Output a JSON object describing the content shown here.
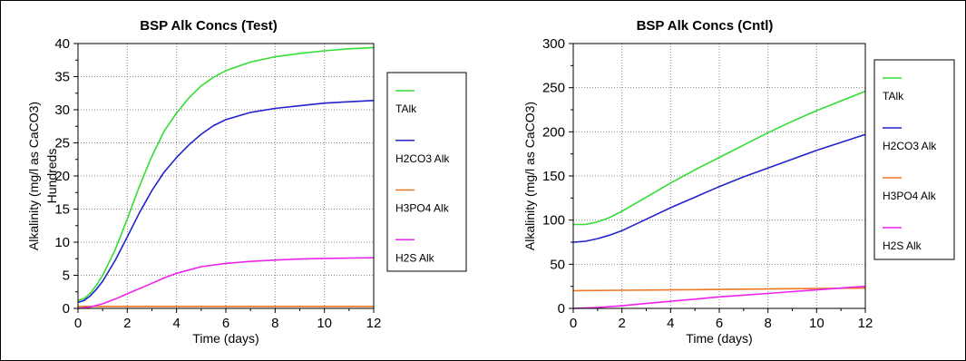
{
  "chart_data": [
    {
      "type": "line",
      "title": "BSP Alk Concs (Test)",
      "xlabel": "Time (days)",
      "ylabel": "Alkalinity (mg/l as CaCO3)",
      "yunit_label": "Hundreds",
      "xlim": [
        0,
        12
      ],
      "ylim": [
        0,
        40
      ],
      "xticks": [
        0,
        2,
        4,
        6,
        8,
        10,
        12
      ],
      "yticks": [
        0,
        5,
        10,
        15,
        20,
        25,
        30,
        35,
        40
      ],
      "grid": true,
      "legend_position": "right",
      "series": [
        {
          "name": "TAlk",
          "color": "#33dd33",
          "x": [
            0,
            0.25,
            0.5,
            0.75,
            1,
            1.5,
            2,
            2.5,
            3,
            3.5,
            4,
            4.5,
            5,
            5.5,
            6,
            7,
            8,
            9,
            10,
            11,
            12
          ],
          "y": [
            1.2,
            1.5,
            2.3,
            3.5,
            5.0,
            8.8,
            13.5,
            18.5,
            23.0,
            26.8,
            29.5,
            31.8,
            33.6,
            34.9,
            35.9,
            37.2,
            38.0,
            38.5,
            38.9,
            39.2,
            39.4
          ]
        },
        {
          "name": "H2CO3 Alk",
          "color": "#2222cc",
          "x": [
            0,
            0.25,
            0.5,
            0.75,
            1,
            1.5,
            2,
            2.5,
            3,
            3.5,
            4,
            4.5,
            5,
            5.5,
            6,
            7,
            8,
            9,
            10,
            11,
            12
          ],
          "y": [
            0.9,
            1.2,
            1.9,
            2.9,
            4.1,
            7.2,
            10.8,
            14.5,
            17.8,
            20.6,
            22.8,
            24.7,
            26.3,
            27.6,
            28.5,
            29.6,
            30.2,
            30.6,
            31.0,
            31.2,
            31.4
          ]
        },
        {
          "name": "H3PO4 Alk",
          "color": "#ee7722",
          "x": [
            0,
            2,
            4,
            6,
            8,
            10,
            12
          ],
          "y": [
            0.3,
            0.3,
            0.3,
            0.3,
            0.3,
            0.3,
            0.3
          ]
        },
        {
          "name": "H2S Alk",
          "color": "#ee22ee",
          "x": [
            0,
            0.5,
            1,
            1.5,
            2,
            2.5,
            3,
            3.5,
            4,
            4.5,
            5,
            6,
            7,
            8,
            9,
            10,
            11,
            12
          ],
          "y": [
            0.0,
            0.2,
            0.7,
            1.4,
            2.2,
            3.0,
            3.8,
            4.6,
            5.3,
            5.8,
            6.3,
            6.8,
            7.1,
            7.3,
            7.45,
            7.55,
            7.6,
            7.65
          ]
        }
      ]
    },
    {
      "type": "line",
      "title": "BSP Alk Concs (Cntl)",
      "xlabel": "Time (days)",
      "ylabel": "Alkalinity (mg/l as CaCO3)",
      "xlim": [
        0,
        12
      ],
      "ylim": [
        0,
        300
      ],
      "xticks": [
        0,
        2,
        4,
        6,
        8,
        10,
        12
      ],
      "yticks": [
        0,
        50,
        100,
        150,
        200,
        250,
        300
      ],
      "grid": true,
      "legend_position": "right",
      "series": [
        {
          "name": "TAlk",
          "color": "#33dd33",
          "x": [
            0,
            0.5,
            1,
            1.5,
            2,
            3,
            4,
            5,
            6,
            7,
            8,
            9,
            10,
            11,
            12
          ],
          "y": [
            95,
            95,
            98,
            103,
            110,
            126,
            142,
            157,
            171,
            185,
            199,
            212,
            224,
            235,
            246
          ]
        },
        {
          "name": "H2CO3 Alk",
          "color": "#2222cc",
          "x": [
            0,
            0.5,
            1,
            1.5,
            2,
            3,
            4,
            5,
            6,
            7,
            8,
            9,
            10,
            11,
            12
          ],
          "y": [
            75,
            76,
            79,
            83,
            88,
            101,
            114,
            126,
            138,
            149,
            159,
            169,
            179,
            188,
            197
          ]
        },
        {
          "name": "H3PO4 Alk",
          "color": "#ee7722",
          "x": [
            0,
            2,
            4,
            6,
            8,
            10,
            12
          ],
          "y": [
            20,
            20.5,
            21,
            21.5,
            22,
            22.5,
            23
          ]
        },
        {
          "name": "H2S Alk",
          "color": "#ee22ee",
          "x": [
            0,
            1,
            2,
            3,
            4,
            5,
            6,
            7,
            8,
            9,
            10,
            11,
            12
          ],
          "y": [
            0,
            1,
            3,
            5.5,
            8,
            10.5,
            13,
            15,
            17,
            19,
            21,
            23,
            25
          ]
        }
      ]
    }
  ]
}
